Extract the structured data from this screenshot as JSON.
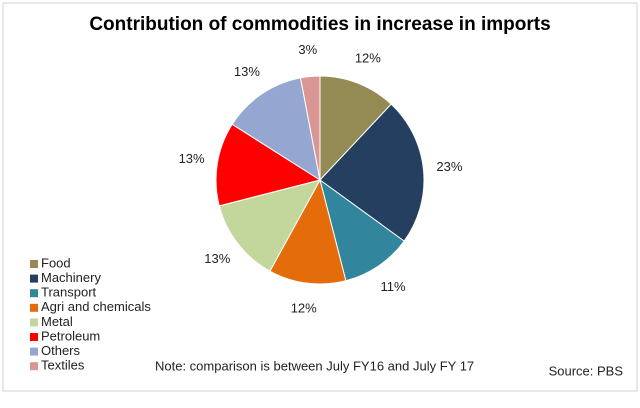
{
  "chart_data": {
    "type": "pie",
    "title": "Contribution of commodities in increase in imports",
    "categories": [
      "Food",
      "Machinery",
      "Transport",
      "Agri and chemicals",
      "Metal",
      "Petroleum",
      "Others",
      "Textiles"
    ],
    "values": [
      12,
      23,
      11,
      12,
      13,
      13,
      13,
      3
    ],
    "value_labels": [
      "12%",
      "23%",
      "11%",
      "12%",
      "13%",
      "13%",
      "13%",
      "3%"
    ],
    "colors": [
      "#948a54",
      "#243f60",
      "#31859c",
      "#e46c0a",
      "#c3d69b",
      "#ff0000",
      "#95a7d0",
      "#d99694"
    ],
    "legend": "bottom-left",
    "note": "Note: comparison is between  July  FY16 and July FY 17",
    "source": "Source: PBS"
  }
}
